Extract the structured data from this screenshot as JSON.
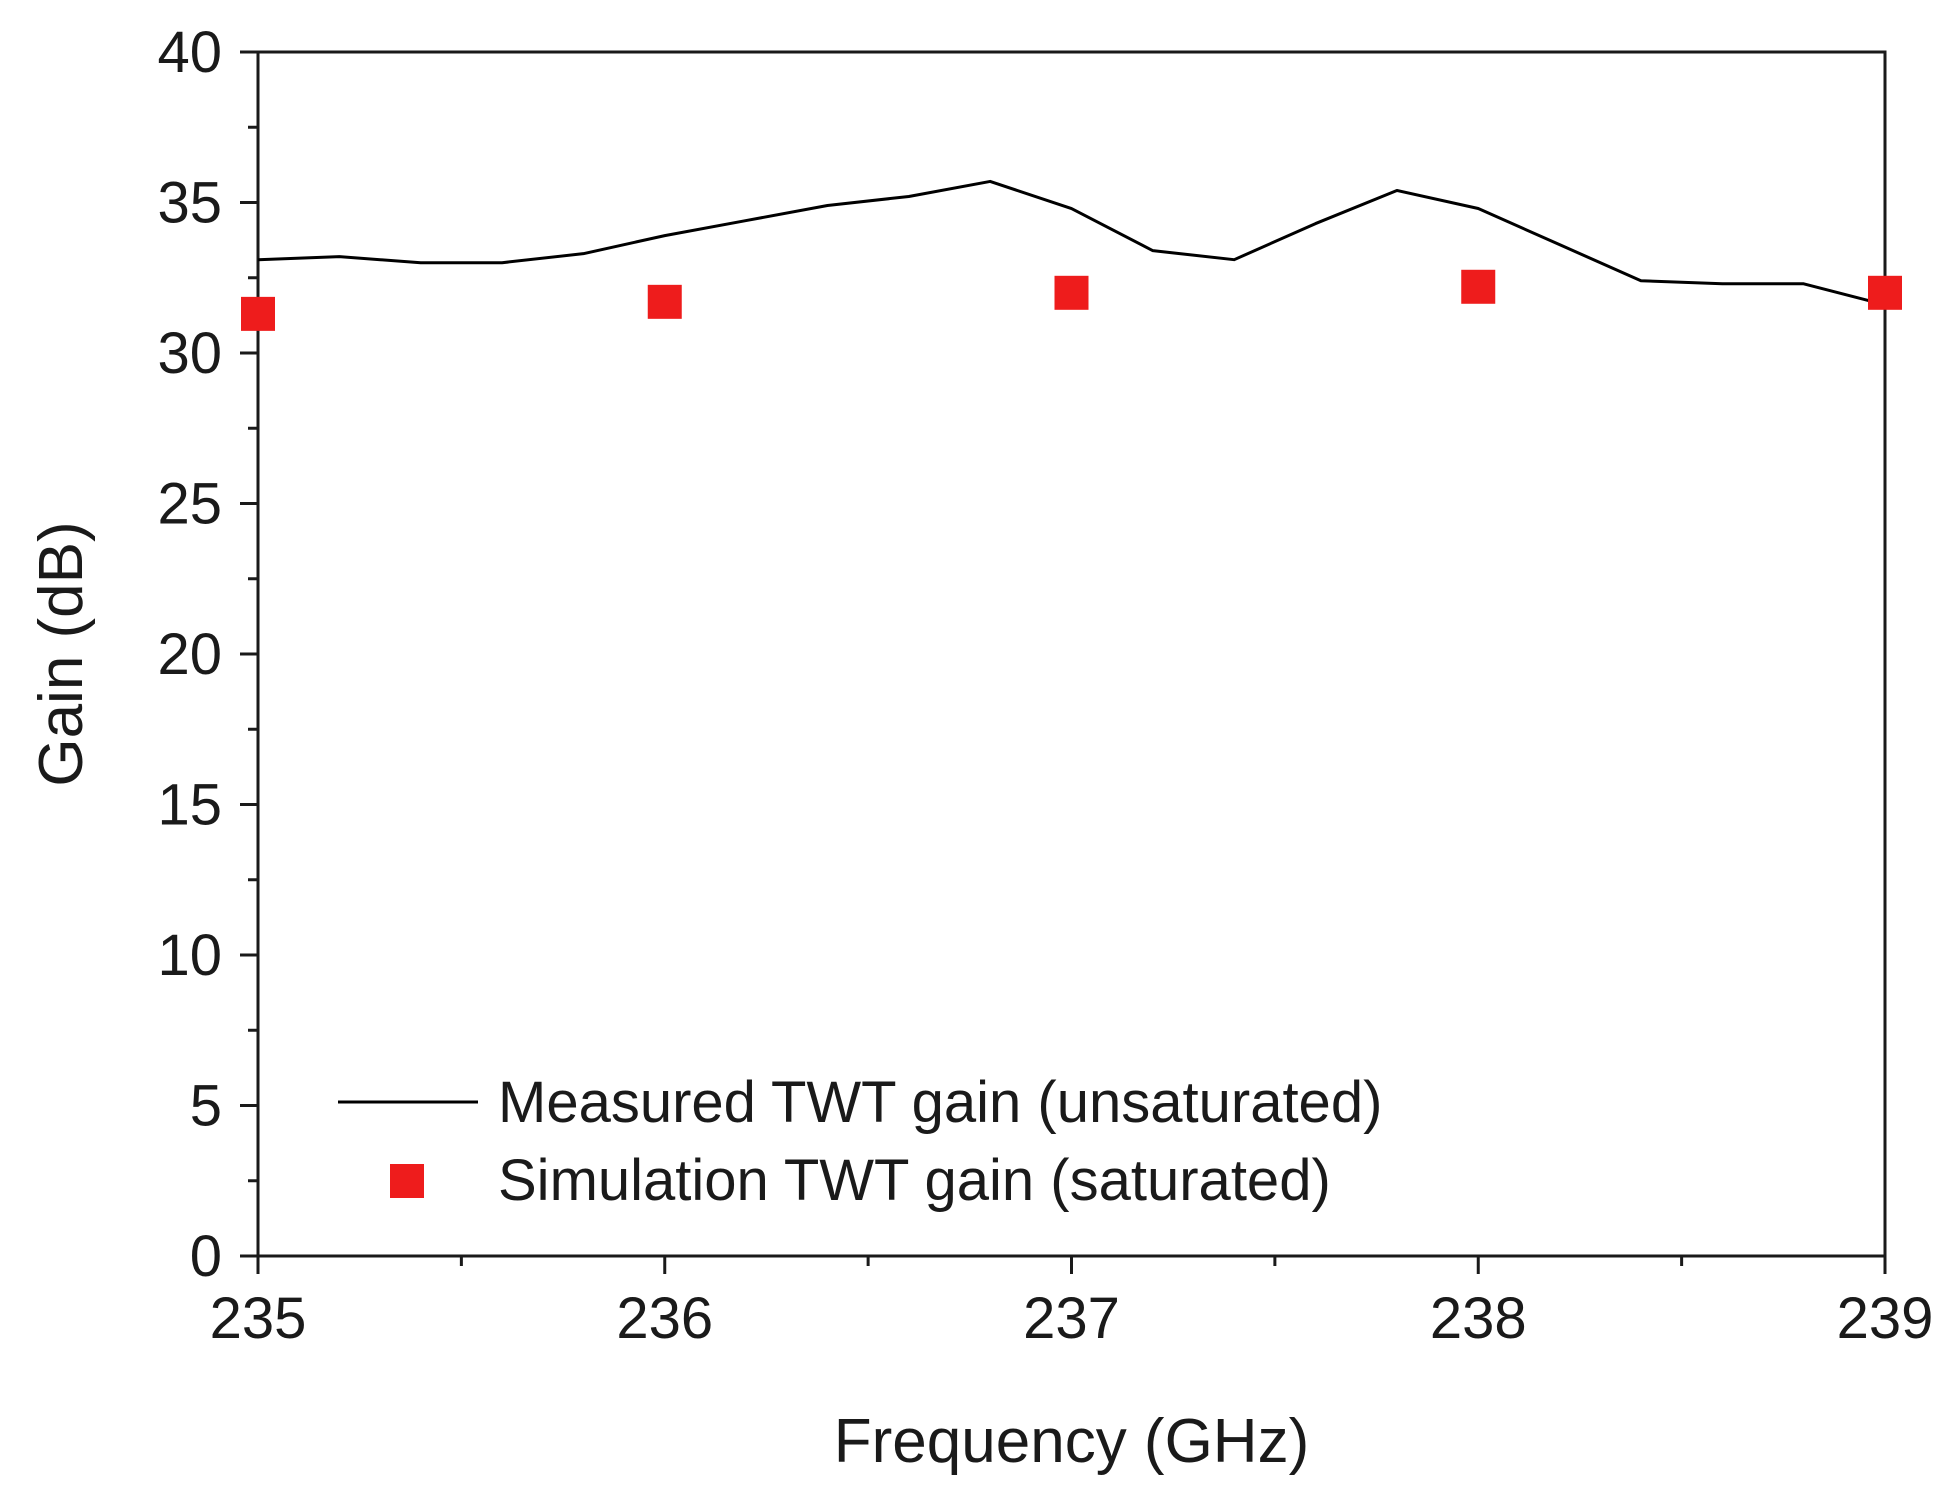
{
  "chart_data": {
    "type": "line",
    "title": "",
    "xlabel": "Frequency (GHz)",
    "ylabel": "Gain (dB)",
    "xlim": [
      235,
      239
    ],
    "ylim": [
      0,
      40
    ],
    "x_ticks": [
      235,
      236,
      237,
      238,
      239
    ],
    "y_ticks": [
      0,
      5,
      10,
      15,
      20,
      25,
      30,
      35,
      40
    ],
    "x_tick_labels": [
      "235",
      "236",
      "237",
      "238",
      "239"
    ],
    "y_tick_labels": [
      "0",
      "5",
      "10",
      "15",
      "20",
      "25",
      "30",
      "35",
      "40"
    ],
    "grid": false,
    "legend_position": "bottom-left",
    "series": [
      {
        "name": "Measured TWT gain (unsaturated)",
        "kind": "line",
        "color": "#000000",
        "x": [
          235.0,
          235.2,
          235.4,
          235.6,
          235.8,
          236.0,
          236.2,
          236.4,
          236.6,
          236.8,
          237.0,
          237.2,
          237.4,
          237.6,
          237.8,
          238.0,
          238.2,
          238.4,
          238.6,
          238.8,
          239.0
        ],
        "y": [
          33.1,
          33.2,
          33.0,
          33.0,
          33.3,
          33.9,
          34.4,
          34.9,
          35.2,
          35.7,
          34.8,
          33.4,
          33.1,
          34.3,
          35.4,
          34.8,
          33.6,
          32.4,
          32.3,
          32.3,
          31.6
        ]
      },
      {
        "name": "Simulation TWT gain (saturated)",
        "kind": "scatter",
        "marker": "square",
        "color": "#ee1c1c",
        "x": [
          235,
          236,
          237,
          238,
          239
        ],
        "y": [
          31.3,
          31.7,
          32.0,
          32.2,
          32.0
        ]
      }
    ]
  }
}
